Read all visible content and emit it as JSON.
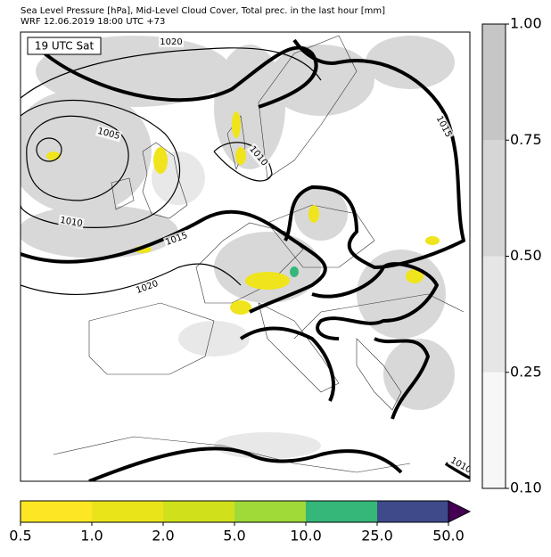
{
  "header": {
    "title_lines": [
      "Sea Level Pressure [hPa], Mid-Level Cloud Cover, Total prec. in the last hour [mm]",
      "WRF 12.06.2019 18:00 UTC +73"
    ]
  },
  "map": {
    "time_label": "19 UTC Sat",
    "isobar_labels": [
      "1020",
      "1005",
      "1010",
      "1010",
      "1015",
      "1020",
      "1015",
      "1010"
    ]
  },
  "cloud_colorbar": {
    "ticks": [
      {
        "value": 0.1,
        "label": "0.10"
      },
      {
        "value": 0.25,
        "label": "0.25"
      },
      {
        "value": 0.5,
        "label": "0.50"
      },
      {
        "value": 0.75,
        "label": "0.75"
      },
      {
        "value": 1,
        "label": "1.00"
      }
    ],
    "colors": [
      "#f7f7f7",
      "#e6e6e6",
      "#d6d6d6",
      "#c6c6c6"
    ]
  },
  "precip_colorbar": {
    "ticks": [
      0.5,
      {
        "value": 1,
        "label": "1.0"
      },
      {
        "value": 2,
        "label": "2.0"
      },
      {
        "value": 5,
        "label": "5.0"
      },
      {
        "value": 10,
        "label": "10.0"
      },
      {
        "value": 25,
        "label": "25.0"
      },
      {
        "value": 50,
        "label": "50.0"
      }
    ],
    "colors": [
      "#fde725",
      "#e8e419",
      "#d0e11c",
      "#a0da39",
      "#35b779",
      "#3e4a89"
    ],
    "extend_color": "#440154"
  }
}
